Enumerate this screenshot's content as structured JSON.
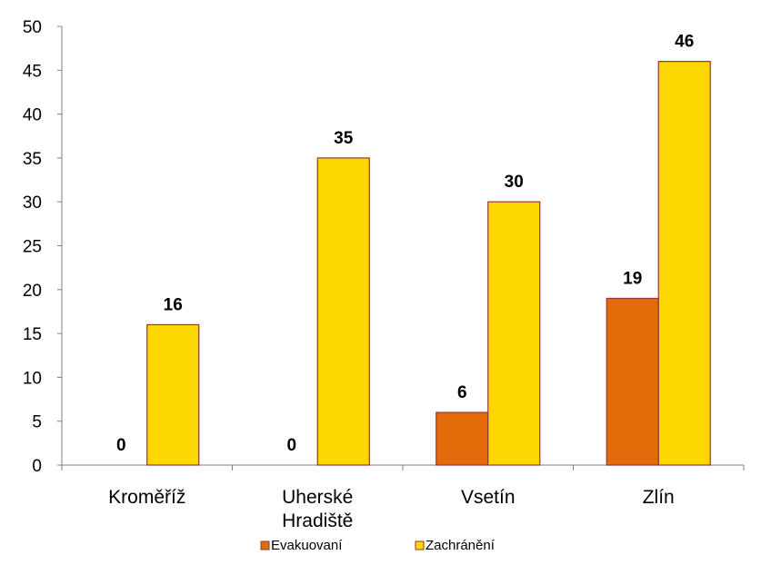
{
  "chart_data": {
    "type": "bar",
    "title": "",
    "xlabel": "",
    "ylabel": "",
    "ylim": [
      0,
      50
    ],
    "yticks": [
      0,
      5,
      10,
      15,
      20,
      25,
      30,
      35,
      40,
      45,
      50
    ],
    "grid": false,
    "legend_position": "bottom",
    "categories": [
      [
        "Kroměříž"
      ],
      [
        "Uherské",
        "Hradiště"
      ],
      [
        "Vsetín"
      ],
      [
        "Zlín"
      ]
    ],
    "series": [
      {
        "name": "Evakuovaní",
        "color": "#E36C0A",
        "values": [
          0,
          0,
          6,
          19
        ]
      },
      {
        "name": "Zachránění",
        "color": "#FFD700",
        "values": [
          16,
          35,
          30,
          46
        ]
      }
    ],
    "bar_border_color": "#953735"
  }
}
